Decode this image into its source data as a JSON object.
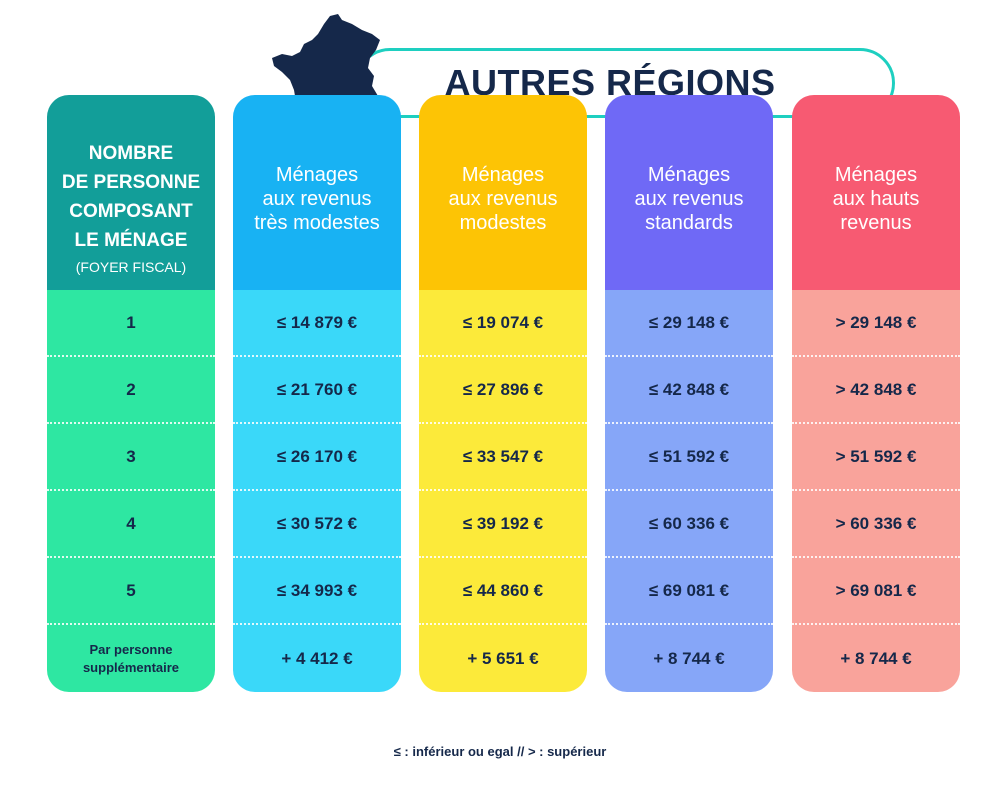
{
  "banner": {
    "title": "AUTRES RÉGIONS"
  },
  "columns": [
    {
      "header_lines": [
        "NOMBRE",
        "DE PERSONNE",
        "COMPOSANT",
        "LE MÉNAGE"
      ],
      "header_sub": "(FOYER FISCAL)",
      "header_color": "#129e99",
      "body_color": "#2ee7a2",
      "rows": [
        "1",
        "2",
        "3",
        "4",
        "5",
        "Par personne supplémentaire"
      ]
    },
    {
      "header_lines": [
        "Ménages",
        "aux revenus",
        "très modestes"
      ],
      "header_color": "#18b2f3",
      "body_color": "#3ad8f9",
      "rows": [
        "≤ 14 879 €",
        "≤ 21 760 €",
        "≤ 26 170 €",
        "≤ 30 572 €",
        "≤ 34 993 €",
        "+ 4 412 €"
      ]
    },
    {
      "header_lines": [
        "Ménages",
        "aux revenus",
        "modestes"
      ],
      "header_color": "#fdc405",
      "body_color": "#fcea3a",
      "rows": [
        "≤ 19 074 €",
        "≤ 27 896 €",
        "≤ 33 547 €",
        "≤ 39 192 €",
        "≤ 44 860 €",
        "+ 5 651 €"
      ]
    },
    {
      "header_lines": [
        "Ménages",
        "aux revenus",
        "standards"
      ],
      "header_color": "#6f69f6",
      "body_color": "#86a6f8",
      "rows": [
        "≤ 29 148 €",
        "≤ 42 848 €",
        "≤ 51 592 €",
        "≤ 60 336 €",
        "≤ 69 081 €",
        "+ 8 744 €"
      ]
    },
    {
      "header_lines": [
        "Ménages",
        "aux hauts",
        "revenus"
      ],
      "header_color": "#f75a72",
      "body_color": "#f9a39b",
      "rows": [
        "> 29 148 €",
        "> 42 848 €",
        "> 51 592 €",
        "> 60 336 €",
        "> 69 081 €",
        "+ 8 744 €"
      ]
    }
  ],
  "legend": "≤ : inférieur ou egal // > : supérieur",
  "colors": {
    "dark_text": "#15284a",
    "banner_border": "#1ecfc0",
    "map": "#15284a"
  },
  "icons": {
    "map": "france-map-icon"
  }
}
